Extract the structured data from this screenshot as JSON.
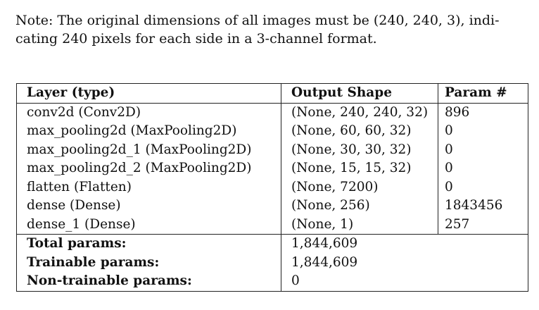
{
  "note": {
    "line1": "Note: The original dimensions of all images must be (240, 240, 3), indi-",
    "line2": "cating 240 pixels for each side in a 3-channel format."
  },
  "table": {
    "headers": [
      "Layer (type)",
      "Output Shape",
      "Param #"
    ],
    "rows": [
      [
        "conv2d (Conv2D)",
        "(None, 240, 240, 32)",
        "896"
      ],
      [
        "max_pooling2d (MaxPooling2D)",
        "(None, 60, 60, 32)",
        "0"
      ],
      [
        "max_pooling2d_1 (MaxPooling2D)",
        "(None, 30, 30, 32)",
        "0"
      ],
      [
        "max_pooling2d_2 (MaxPooling2D)",
        "(None, 15, 15, 32)",
        "0"
      ],
      [
        "flatten (Flatten)",
        "(None, 7200)",
        "0"
      ],
      [
        "dense (Dense)",
        "(None, 256)",
        "1843456"
      ],
      [
        "dense_1 (Dense)",
        "(None, 1)",
        "257"
      ]
    ],
    "summary": [
      [
        "Total params:",
        "1,844,609"
      ],
      [
        "Trainable params:",
        "1,844,609"
      ],
      [
        "Non-trainable params:",
        "0"
      ]
    ]
  }
}
